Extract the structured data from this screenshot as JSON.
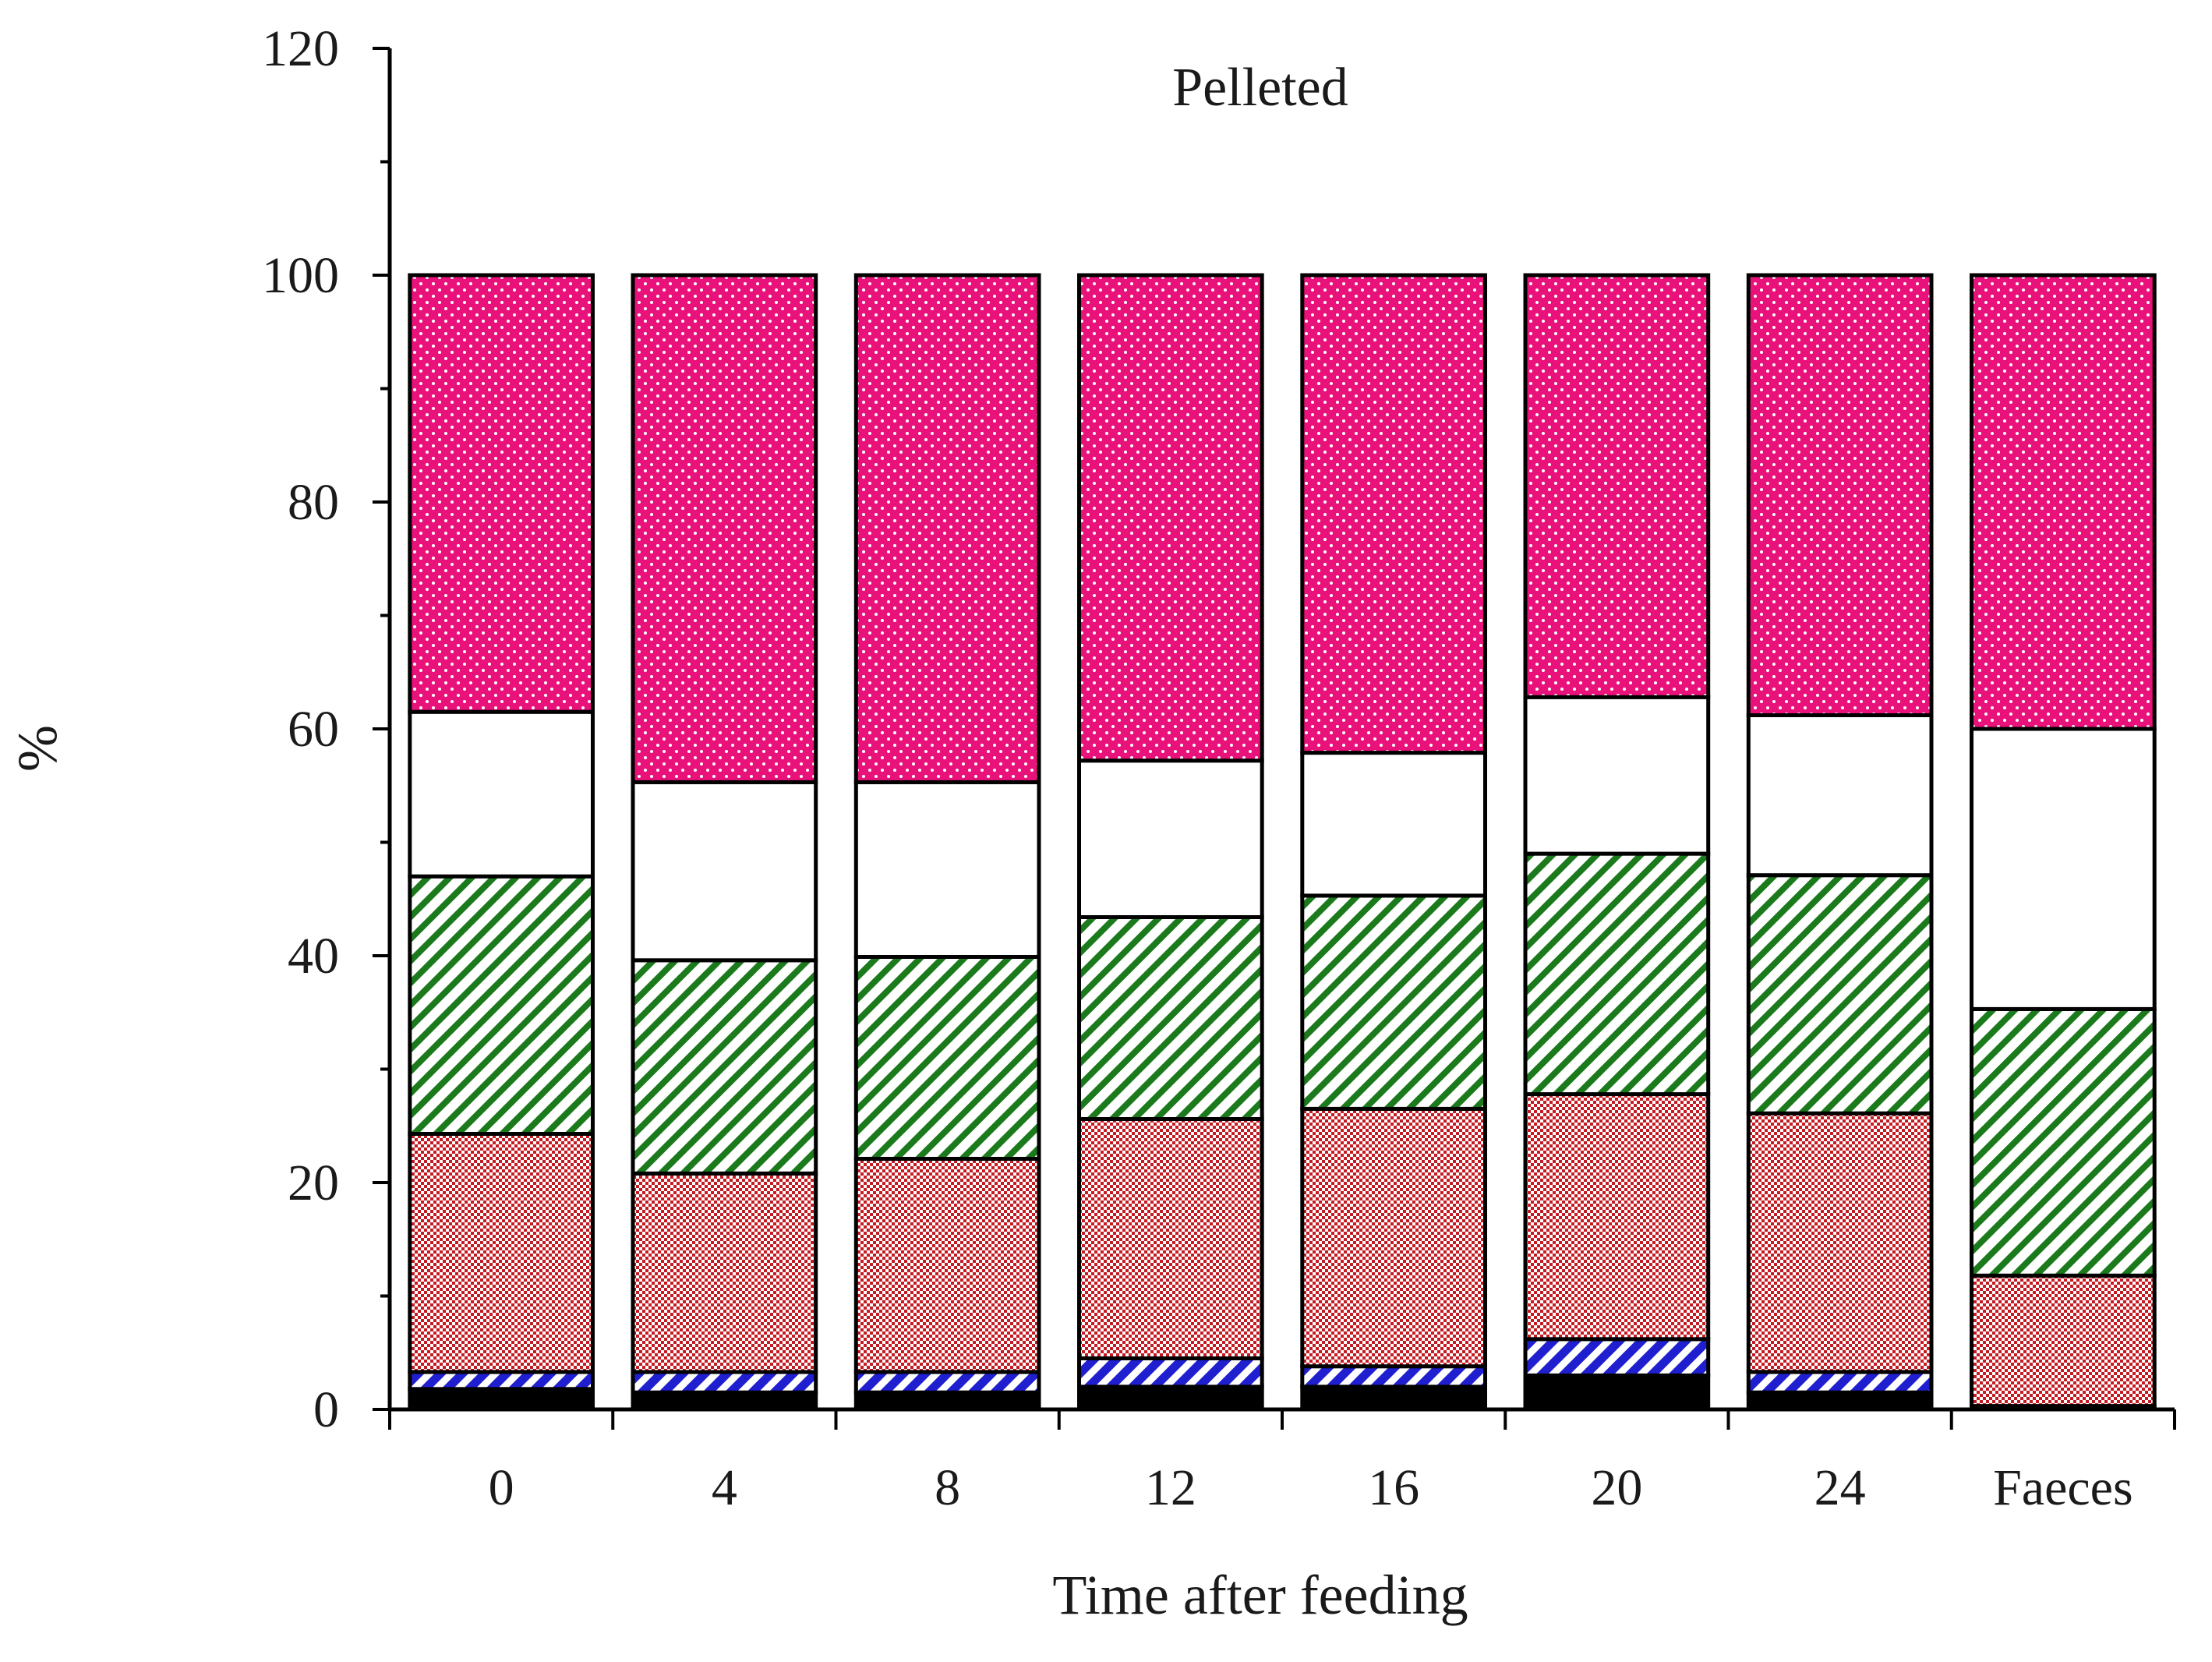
{
  "chart_data": {
    "type": "stacked-bar",
    "title": "Pelleted",
    "xlabel": "Time after feeding",
    "ylabel": "%",
    "ylim": [
      0,
      120
    ],
    "yticks": [
      0,
      20,
      40,
      60,
      80,
      100,
      120
    ],
    "categories": [
      "0",
      "4",
      "8",
      "12",
      "16",
      "20",
      "24",
      "Faeces"
    ],
    "series": [
      {
        "name": "segment-1 (black)",
        "color": "#000000",
        "pattern": "solid",
        "values": [
          1.8,
          1.5,
          1.5,
          2.0,
          2.0,
          3.0,
          1.5,
          0.3
        ]
      },
      {
        "name": "segment-2 (blue hatched)",
        "color": "#1f1fd0",
        "pattern": "hatch",
        "values": [
          1.5,
          1.8,
          1.8,
          2.5,
          1.8,
          3.2,
          1.8,
          0.0
        ]
      },
      {
        "name": "segment-3 (red checkered)",
        "color": "#c41a22",
        "pattern": "check",
        "values": [
          21.0,
          17.5,
          18.8,
          21.1,
          22.7,
          21.6,
          22.8,
          11.5
        ]
      },
      {
        "name": "segment-4 (green hatched)",
        "color": "#1b7a1b",
        "pattern": "hatch",
        "values": [
          22.7,
          18.8,
          17.8,
          17.8,
          18.8,
          21.2,
          21.0,
          23.5
        ]
      },
      {
        "name": "segment-5 (white)",
        "color": "#ffffff",
        "pattern": "solid",
        "values": [
          14.5,
          15.7,
          15.4,
          13.8,
          12.6,
          13.8,
          14.1,
          24.7
        ]
      },
      {
        "name": "segment-6 (magenta dotted)",
        "color": "#e8127a",
        "pattern": "dots",
        "values": [
          38.5,
          44.7,
          44.7,
          42.8,
          42.1,
          37.2,
          38.8,
          40.0
        ]
      }
    ]
  }
}
